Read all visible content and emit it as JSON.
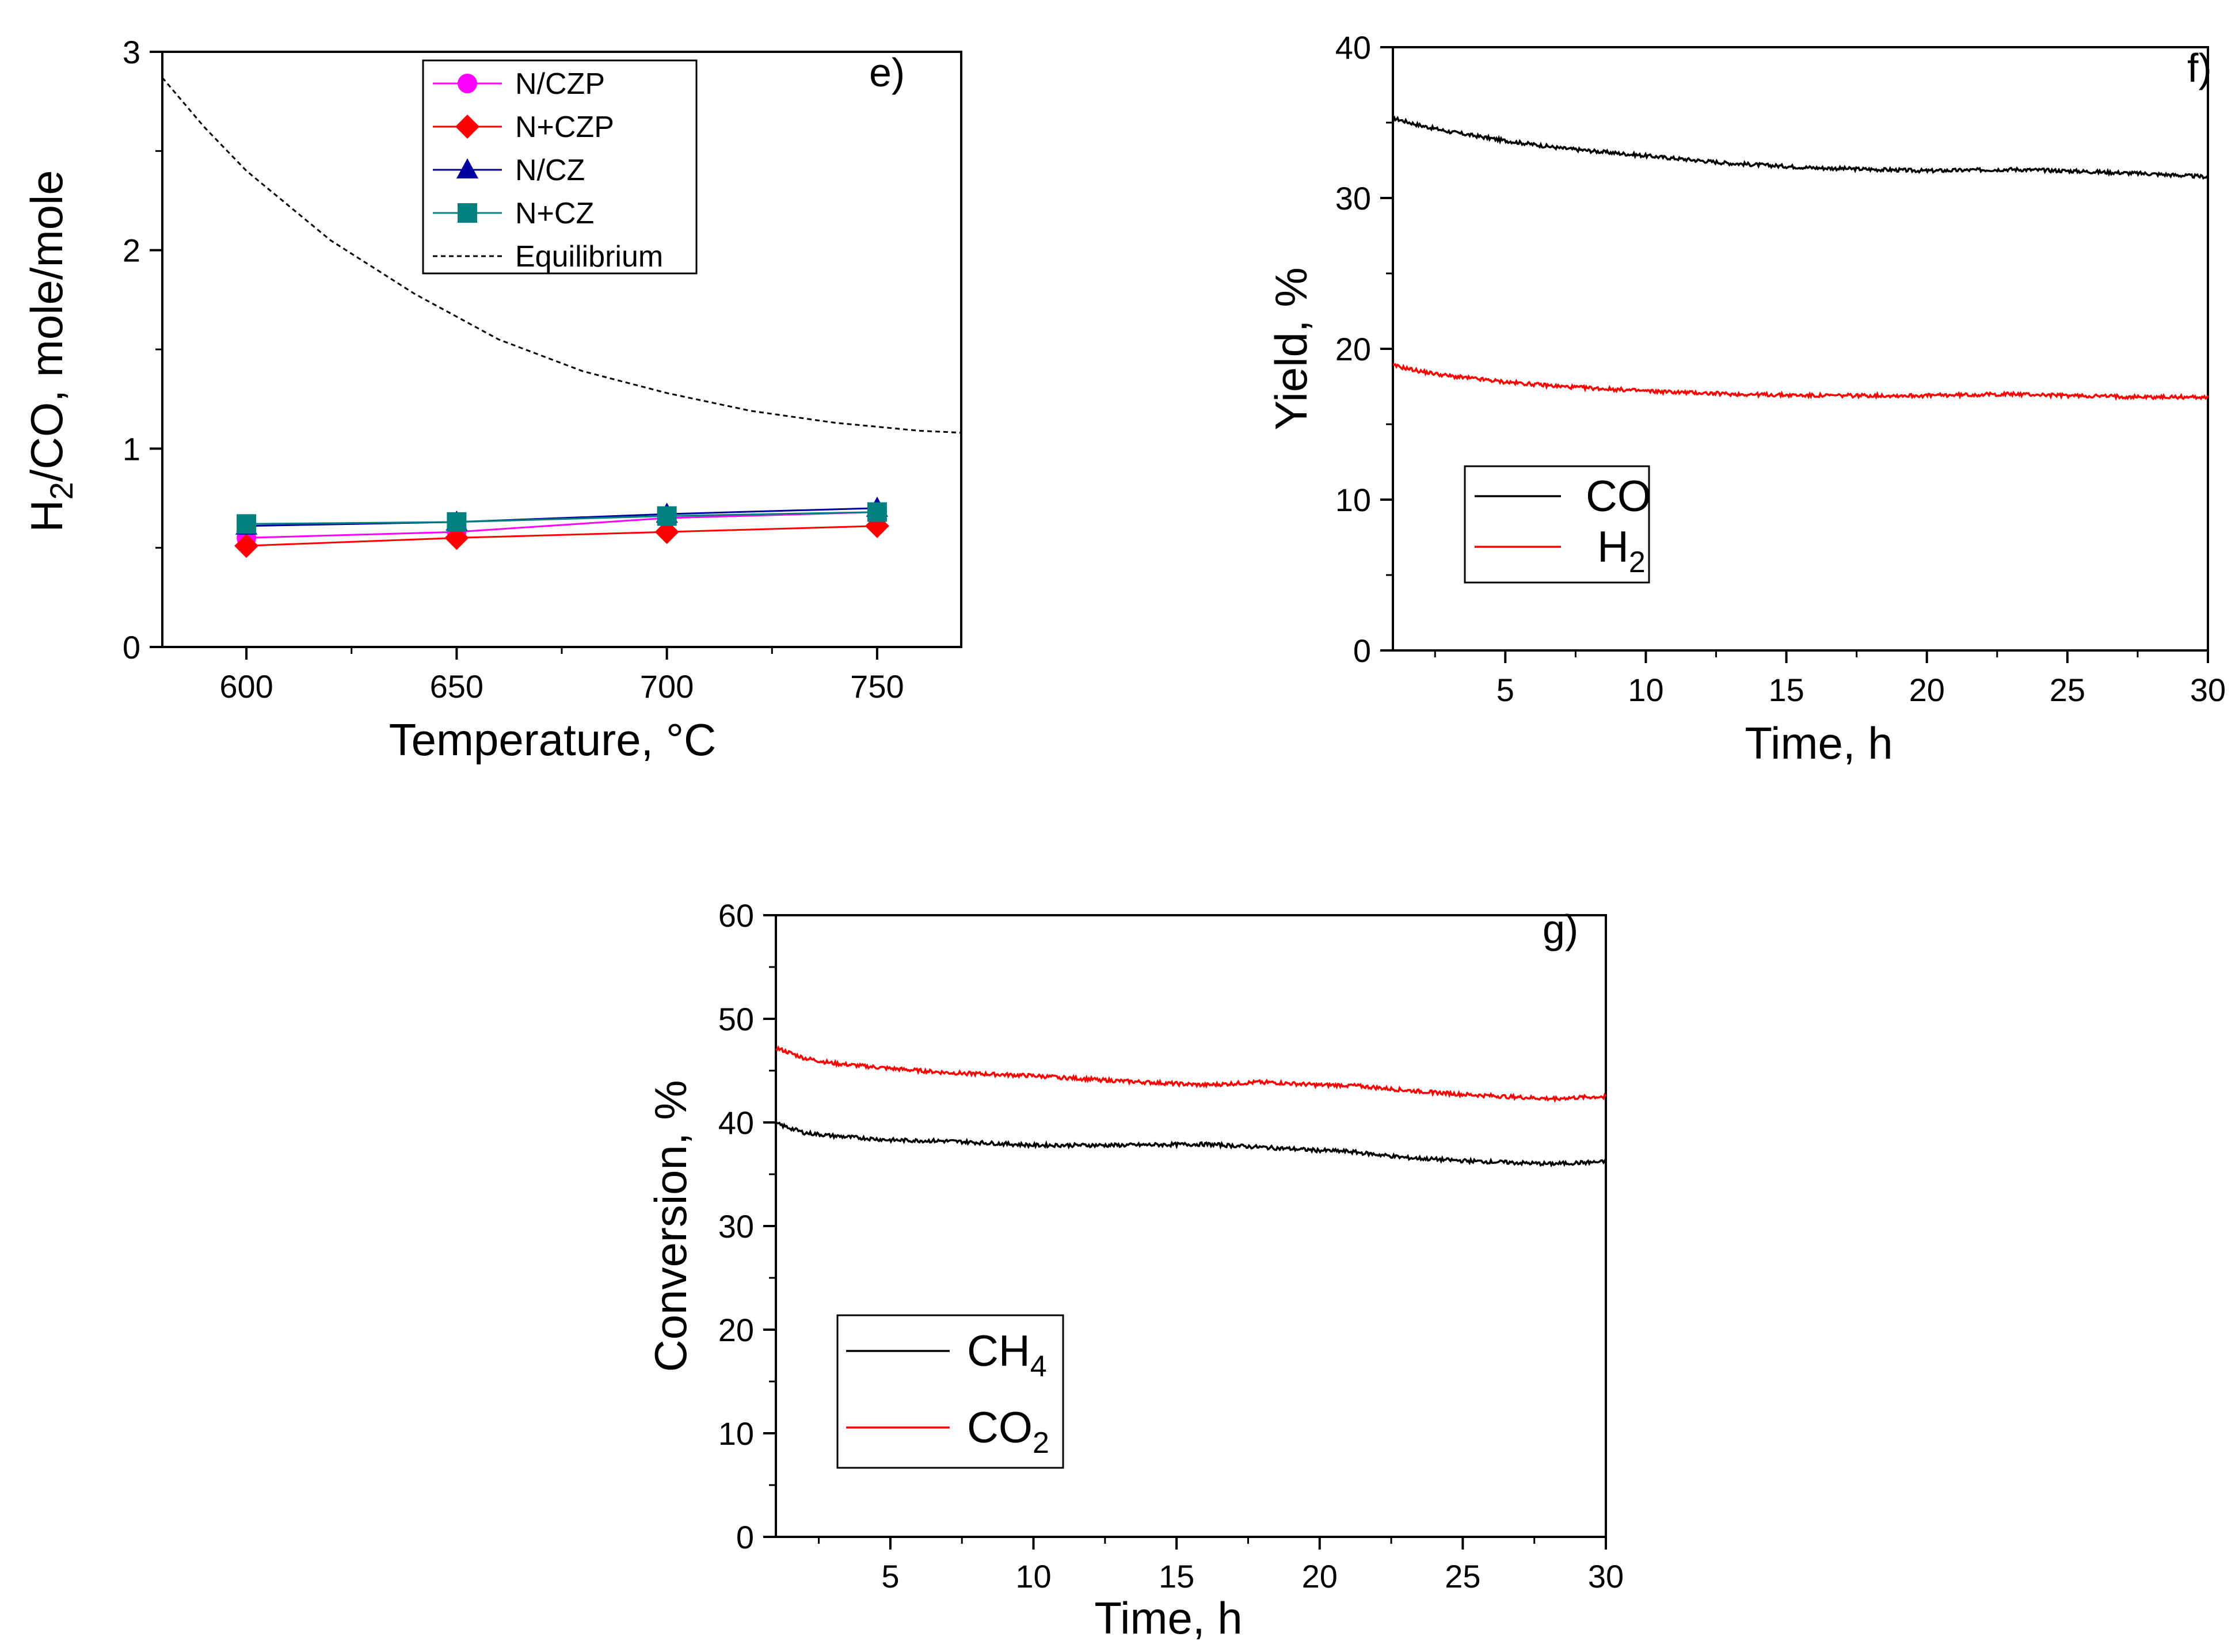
{
  "chart_data": [
    {
      "id": "e",
      "type": "line",
      "panel_label": "e)",
      "xlabel": "Temperature, °C",
      "ylabel_parts": [
        "H",
        "2",
        "/CO, mole/mole"
      ],
      "xlim": [
        580,
        770
      ],
      "ylim": [
        0,
        3
      ],
      "xticks": [
        600,
        650,
        700,
        750
      ],
      "yticks": [
        0,
        1,
        2,
        3
      ],
      "x": [
        600,
        650,
        700,
        750
      ],
      "series": [
        {
          "name": "N/CZP",
          "color": "#ff00ff",
          "marker": "circle",
          "values": [
            0.55,
            0.58,
            0.65,
            0.68
          ]
        },
        {
          "name": "N+CZP",
          "color": "#ff0000",
          "marker": "diamond",
          "values": [
            0.51,
            0.55,
            0.58,
            0.61
          ]
        },
        {
          "name": "N/CZ",
          "color": "#0000a0",
          "marker": "triangle",
          "values": [
            0.61,
            0.63,
            0.67,
            0.7
          ]
        },
        {
          "name": "N+CZ",
          "color": "#008080",
          "marker": "square",
          "values": [
            0.62,
            0.63,
            0.66,
            0.68
          ]
        }
      ],
      "equilibrium": {
        "name": "Equilibrium",
        "color": "#000000",
        "dash": true,
        "x": [
          580,
          590,
          600,
          620,
          640,
          660,
          680,
          700,
          720,
          740,
          760,
          770
        ],
        "values": [
          2.87,
          2.62,
          2.4,
          2.05,
          1.78,
          1.55,
          1.39,
          1.28,
          1.19,
          1.13,
          1.09,
          1.08
        ]
      }
    },
    {
      "id": "f",
      "type": "line",
      "panel_label": "f)",
      "xlabel": "Time, h",
      "ylabel": "Yield, %",
      "xlim": [
        1,
        30
      ],
      "ylim": [
        0,
        40
      ],
      "xticks": [
        5,
        10,
        15,
        20,
        25,
        30
      ],
      "yticks": [
        0,
        10,
        20,
        30,
        40
      ],
      "x": [
        1,
        2,
        3,
        5,
        7,
        10,
        13,
        16,
        20,
        23,
        25,
        28,
        30
      ],
      "series": [
        {
          "name": "CO",
          "sub": "",
          "color": "#000000",
          "values": [
            35.3,
            34.8,
            34.4,
            33.8,
            33.3,
            32.8,
            32.3,
            32.0,
            31.8,
            31.9,
            31.8,
            31.6,
            31.4
          ]
        },
        {
          "name": "H",
          "sub": "2",
          "color": "#ff0000",
          "values": [
            18.9,
            18.5,
            18.2,
            17.8,
            17.5,
            17.2,
            17.0,
            16.9,
            16.9,
            17.0,
            16.9,
            16.8,
            16.8
          ]
        }
      ]
    },
    {
      "id": "g",
      "type": "line",
      "panel_label": "g)",
      "xlabel": "Time, h",
      "ylabel": "Conversion, %",
      "xlim": [
        1,
        30
      ],
      "ylim": [
        0,
        60
      ],
      "xticks": [
        5,
        10,
        15,
        20,
        25,
        30
      ],
      "yticks": [
        0,
        10,
        20,
        30,
        40,
        50,
        60
      ],
      "x": [
        1,
        2,
        3,
        5,
        7,
        10,
        13,
        16,
        18,
        20,
        21,
        23,
        25,
        28,
        30
      ],
      "series": [
        {
          "name": "CH",
          "sub": "4",
          "color": "#000000",
          "values": [
            39.9,
            39.0,
            38.7,
            38.3,
            38.2,
            37.8,
            37.8,
            37.9,
            37.6,
            37.3,
            37.2,
            36.6,
            36.3,
            36.0,
            36.2
          ]
        },
        {
          "name": "CO",
          "sub": "2",
          "color": "#ff0000",
          "values": [
            47.2,
            46.2,
            45.7,
            45.2,
            44.8,
            44.5,
            44.0,
            43.6,
            43.9,
            43.6,
            43.6,
            43.1,
            42.7,
            42.3,
            42.5
          ]
        }
      ]
    }
  ]
}
